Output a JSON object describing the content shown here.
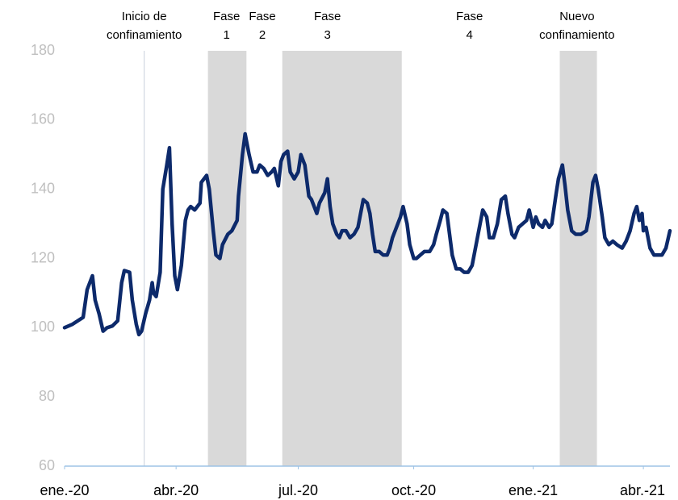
{
  "chart_data": {
    "type": "line",
    "x": [
      0,
      6,
      10,
      14,
      17,
      21,
      23,
      26,
      29,
      32,
      36,
      40,
      43,
      45,
      49,
      51,
      54,
      56,
      58,
      61,
      64,
      66,
      67,
      69,
      72,
      74,
      77,
      79,
      81,
      83,
      85,
      88,
      91,
      93,
      95,
      98,
      102,
      103,
      107,
      109,
      112,
      114,
      117,
      119,
      123,
      126,
      130,
      131,
      134,
      136,
      139,
      142,
      145,
      147,
      150,
      153,
      156,
      158,
      161,
      163,
      165,
      168,
      170,
      173,
      176,
      178,
      181,
      184,
      186,
      190,
      192,
      196,
      198,
      200,
      202,
      205,
      207,
      209,
      212,
      215,
      218,
      221,
      225,
      228,
      230,
      232,
      234,
      237,
      240,
      243,
      245,
      247,
      250,
      253,
      255,
      258,
      260,
      263,
      265,
      268,
      271,
      275,
      278,
      280,
      283,
      285,
      288,
      290,
      292,
      295,
      298,
      301,
      304,
      307,
      310,
      313,
      315,
      318,
      320,
      323,
      326,
      329,
      332,
      334,
      337,
      339,
      342,
      345,
      348,
      350,
      353,
      355,
      357,
      360,
      362,
      365,
      367,
      370,
      372,
      375,
      377,
      379,
      382,
      385,
      389,
      393,
      395,
      398,
      400,
      402,
      405,
      407,
      410,
      413,
      416,
      420,
      423,
      426,
      429,
      431,
      433,
      435,
      436,
      438,
      441,
      444,
      447,
      450,
      453,
      456
    ],
    "series": [
      {
        "color": "#0d2a6b",
        "values": [
          100,
          101,
          102,
          103,
          111,
          115,
          108,
          104,
          99,
          100,
          100.5,
          102,
          113,
          116.5,
          116,
          108,
          101,
          98,
          99,
          104,
          108,
          113,
          110,
          109,
          116,
          140,
          147,
          152,
          130,
          115,
          111,
          118,
          131,
          134,
          135,
          134,
          136,
          142,
          144,
          140,
          128,
          121,
          120,
          124,
          127,
          128,
          131,
          138,
          150,
          156,
          150,
          145,
          145,
          147,
          146,
          144,
          145,
          146,
          141,
          148,
          150,
          151,
          145,
          143,
          145,
          150,
          147,
          138,
          137,
          133,
          136,
          139,
          143,
          135,
          130,
          127,
          126,
          128,
          128,
          126,
          127,
          129,
          137,
          136,
          133,
          127,
          122,
          122,
          121,
          121,
          123,
          126,
          129,
          132,
          135,
          130,
          124,
          120,
          120,
          121,
          122,
          122,
          124,
          127,
          131,
          134,
          133,
          127,
          121,
          117,
          117,
          116,
          116,
          118,
          124,
          130,
          134,
          132,
          126,
          126,
          130,
          137,
          138,
          133,
          127,
          126,
          129,
          130,
          131,
          134,
          129,
          132,
          130,
          129,
          131,
          129,
          130,
          138,
          143,
          147,
          141,
          134,
          128,
          127,
          127,
          128,
          132,
          142,
          144,
          140,
          132,
          126,
          124,
          125,
          124,
          123,
          125,
          128,
          133,
          135,
          131,
          133,
          128,
          129,
          123,
          121,
          121,
          121,
          123,
          128
        ]
      }
    ],
    "xlim": [
      0,
      456
    ],
    "xticks": [
      {
        "value": 0,
        "label": "ene.-20"
      },
      {
        "value": 84,
        "label": "abr.-20"
      },
      {
        "value": 176,
        "label": "jul.-20"
      },
      {
        "value": 263,
        "label": "oct.-20"
      },
      {
        "value": 353,
        "label": "ene.-21"
      },
      {
        "value": 436,
        "label": "abr.-21"
      }
    ],
    "ylim": [
      60,
      180
    ],
    "yticks": [
      60,
      80,
      100,
      120,
      140,
      160,
      180
    ],
    "bands": [
      {
        "start": 108,
        "end": 137
      },
      {
        "start": 164,
        "end": 254
      },
      {
        "start": 373,
        "end": 401
      }
    ],
    "vlines": [
      60
    ],
    "annotations": [
      {
        "x": 60,
        "lines": [
          "Inicio de",
          "confinamiento"
        ]
      },
      {
        "x": 122,
        "lines": [
          "Fase",
          "1"
        ]
      },
      {
        "x": 149,
        "lines": [
          "Fase",
          "2"
        ]
      },
      {
        "x": 198,
        "lines": [
          "Fase",
          "3"
        ]
      },
      {
        "x": 305,
        "lines": [
          "Fase",
          "4"
        ]
      },
      {
        "x": 386,
        "lines": [
          "Nuevo",
          "confinamiento"
        ]
      }
    ]
  }
}
